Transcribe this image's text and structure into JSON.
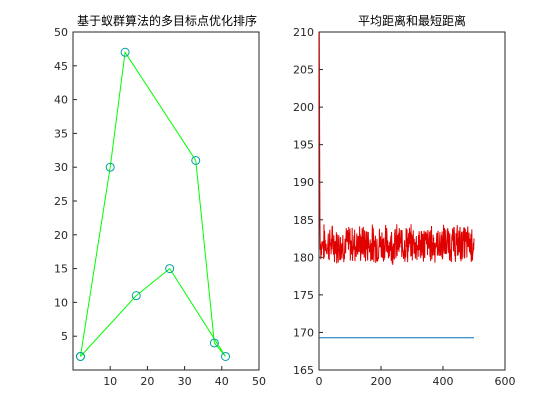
{
  "chart_data": [
    {
      "type": "line",
      "title": "基于蚁群算法的多目标点优化排序",
      "xlim": [
        0,
        50
      ],
      "ylim": [
        0,
        50
      ],
      "xticks": [
        10,
        20,
        30,
        40,
        50
      ],
      "yticks": [
        5,
        10,
        15,
        20,
        25,
        30,
        35,
        40,
        45,
        50
      ],
      "grid": true,
      "series": [
        {
          "color": "#00ff00",
          "marker": "circle",
          "marker_color": "#00a0a0",
          "x": [
            2,
            10,
            14,
            33,
            38,
            41,
            26,
            17,
            2
          ],
          "y": [
            2,
            30,
            47,
            31,
            4,
            2,
            15,
            11,
            2
          ]
        }
      ]
    },
    {
      "type": "line",
      "title": "平均距离和最短距离",
      "xlim": [
        0,
        600
      ],
      "ylim": [
        165,
        210
      ],
      "xticks": [
        0,
        200,
        400,
        600
      ],
      "yticks": [
        165,
        170,
        175,
        180,
        185,
        190,
        195,
        200,
        205,
        210
      ],
      "grid": true,
      "series": [
        {
          "color": "#e00000",
          "x_range": [
            1,
            500
          ],
          "y_start": [
            210,
            196,
            185,
            181
          ],
          "y_mean": 181.8,
          "y_noise": 2.3,
          "y_min": 178.6,
          "y_max": 184.4
        },
        {
          "color": "#0072bd",
          "x": [
            1,
            500
          ],
          "y": [
            169.3,
            169.3
          ]
        }
      ]
    }
  ]
}
